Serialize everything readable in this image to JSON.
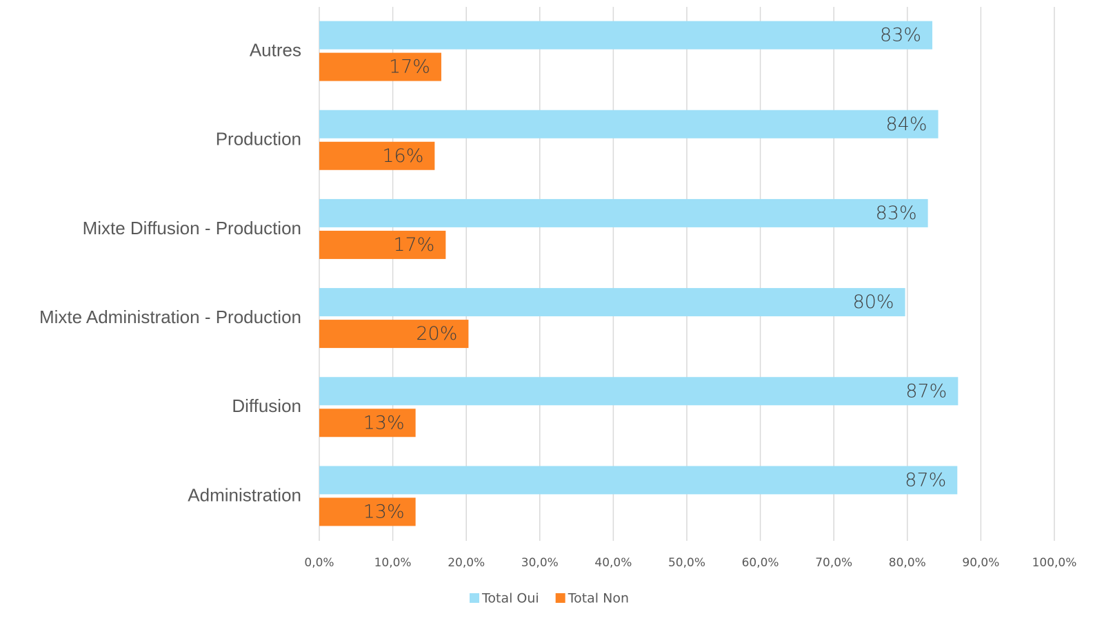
{
  "chart_data": {
    "type": "barh",
    "categories": [
      "Autres",
      "Production",
      "Mixte Diffusion - Production",
      "Mixte Administration - Production",
      "Diffusion",
      "Administration"
    ],
    "series": [
      {
        "name": "Total Oui",
        "color": "#9ddff7",
        "values": [
          83.4,
          84.2,
          82.8,
          79.7,
          86.9,
          86.8
        ],
        "value_labels": [
          "83%",
          "84%",
          "83%",
          "80%",
          "87%",
          "87%"
        ]
      },
      {
        "name": "Total Non",
        "color": "#fd8322",
        "values": [
          16.6,
          15.7,
          17.2,
          20.3,
          13.1,
          13.1
        ],
        "value_labels": [
          "17%",
          "16%",
          "17%",
          "20%",
          "13%",
          "13%"
        ]
      }
    ],
    "xlim": [
      0,
      100
    ],
    "xticks": [
      {
        "value": 0,
        "label": "0,0%"
      },
      {
        "value": 10,
        "label": "10,0%"
      },
      {
        "value": 20,
        "label": "20,0%"
      },
      {
        "value": 30,
        "label": "30,0%"
      },
      {
        "value": 40,
        "label": "40,0%"
      },
      {
        "value": 50,
        "label": "50,0%"
      },
      {
        "value": 60,
        "label": "60,0%"
      },
      {
        "value": 70,
        "label": "70,0%"
      },
      {
        "value": 80,
        "label": "80,0%"
      },
      {
        "value": 90,
        "label": "90,0%"
      },
      {
        "value": 100,
        "label": "100,0%"
      }
    ],
    "grid": true,
    "legend": "bottom"
  }
}
